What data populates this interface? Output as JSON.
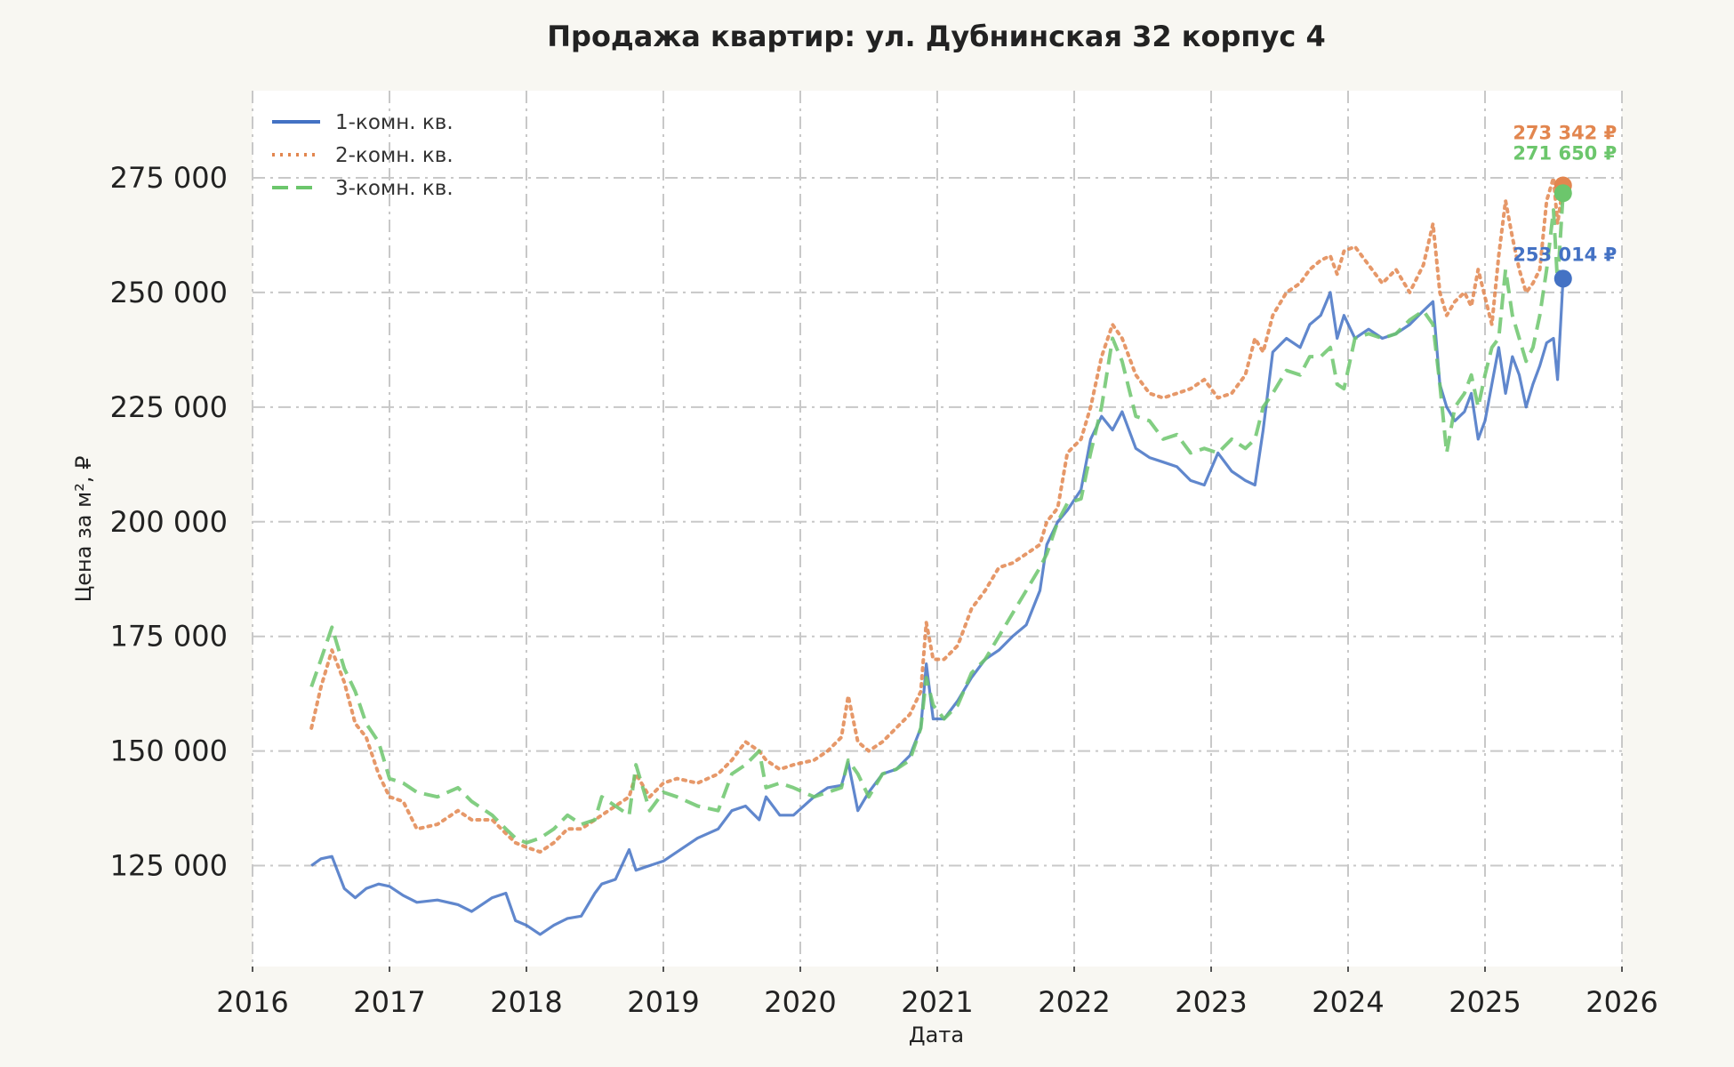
{
  "chart_data": {
    "type": "line",
    "title": "Продажа квартир: ул. Дубнинская 32 корпус 4",
    "xlabel": "Дата",
    "ylabel": "Цена за м², ₽",
    "xlim": [
      2016.0,
      2026.0
    ],
    "ylim": [
      103000,
      294000
    ],
    "x_ticks": [
      2016,
      2017,
      2018,
      2019,
      2020,
      2021,
      2022,
      2023,
      2024,
      2025,
      2026
    ],
    "x_tick_labels": [
      "2016",
      "2017",
      "2018",
      "2019",
      "2020",
      "2021",
      "2022",
      "2023",
      "2024",
      "2025",
      "2026"
    ],
    "y_ticks": [
      125000,
      150000,
      175000,
      200000,
      225000,
      250000,
      275000
    ],
    "y_tick_labels": [
      "125 000",
      "150 000",
      "175 000",
      "200 000",
      "225 000",
      "250 000",
      "275 000"
    ],
    "grid": true,
    "legend_position": "top-left",
    "series": [
      {
        "name": "1-комн. кв.",
        "color": "#4472c4",
        "style": "solid",
        "end_label": "253 014 ₽",
        "end_value": 253014,
        "x": [
          2016.43,
          2016.5,
          2016.58,
          2016.67,
          2016.75,
          2016.83,
          2016.92,
          2017.0,
          2017.1,
          2017.2,
          2017.35,
          2017.5,
          2017.6,
          2017.75,
          2017.85,
          2017.92,
          2018.0,
          2018.1,
          2018.2,
          2018.3,
          2018.4,
          2018.5,
          2018.55,
          2018.65,
          2018.75,
          2018.8,
          2018.9,
          2019.0,
          2019.1,
          2019.25,
          2019.4,
          2019.5,
          2019.6,
          2019.7,
          2019.75,
          2019.85,
          2019.95,
          2020.1,
          2020.2,
          2020.3,
          2020.35,
          2020.42,
          2020.5,
          2020.6,
          2020.7,
          2020.8,
          2020.88,
          2020.92,
          2020.97,
          2021.05,
          2021.15,
          2021.25,
          2021.35,
          2021.45,
          2021.55,
          2021.65,
          2021.75,
          2021.8,
          2021.88,
          2021.95,
          2022.05,
          2022.12,
          2022.2,
          2022.28,
          2022.35,
          2022.45,
          2022.55,
          2022.65,
          2022.75,
          2022.85,
          2022.95,
          2023.05,
          2023.15,
          2023.25,
          2023.32,
          2023.38,
          2023.45,
          2023.55,
          2023.65,
          2023.72,
          2023.8,
          2023.87,
          2023.92,
          2023.97,
          2024.05,
          2024.15,
          2024.25,
          2024.35,
          2024.45,
          2024.55,
          2024.62,
          2024.67,
          2024.72,
          2024.78,
          2024.85,
          2024.9,
          2024.95,
          2025.0,
          2025.05,
          2025.1,
          2025.15,
          2025.2,
          2025.25,
          2025.3,
          2025.35,
          2025.4,
          2025.45,
          2025.5,
          2025.53,
          2025.57
        ],
        "y": [
          125000,
          126500,
          127000,
          120000,
          118000,
          120000,
          121000,
          120500,
          118500,
          117000,
          117500,
          116500,
          115000,
          118000,
          119000,
          113000,
          112000,
          110000,
          112000,
          113500,
          114000,
          119000,
          121000,
          122000,
          128500,
          124000,
          125000,
          126000,
          128000,
          131000,
          133000,
          137000,
          138000,
          135000,
          140000,
          136000,
          136000,
          140000,
          142000,
          142500,
          147500,
          137000,
          141000,
          145000,
          146000,
          149000,
          155000,
          169000,
          157000,
          157000,
          161000,
          166000,
          170000,
          172000,
          175000,
          177500,
          185000,
          195000,
          200000,
          202500,
          207000,
          218000,
          223000,
          220000,
          224000,
          216000,
          214000,
          213000,
          212000,
          209000,
          208000,
          215000,
          211000,
          209000,
          208000,
          220000,
          237000,
          240000,
          238000,
          243000,
          245000,
          250000,
          240000,
          245000,
          240000,
          242000,
          240000,
          241000,
          243000,
          246000,
          248000,
          230000,
          225000,
          222000,
          224000,
          228000,
          218000,
          222000,
          230000,
          238000,
          228000,
          236000,
          232000,
          225000,
          230000,
          234000,
          239000,
          240000,
          231000,
          253014
        ]
      },
      {
        "name": "2-комн. кв.",
        "color": "#e2864f",
        "style": "dotted",
        "end_label": "273 342 ₽",
        "end_value": 273342,
        "x": [
          2016.43,
          2016.5,
          2016.58,
          2016.67,
          2016.75,
          2016.83,
          2016.92,
          2017.0,
          2017.1,
          2017.2,
          2017.35,
          2017.5,
          2017.6,
          2017.75,
          2017.85,
          2017.92,
          2018.0,
          2018.1,
          2018.2,
          2018.3,
          2018.4,
          2018.5,
          2018.55,
          2018.65,
          2018.75,
          2018.8,
          2018.9,
          2019.0,
          2019.1,
          2019.25,
          2019.4,
          2019.5,
          2019.6,
          2019.7,
          2019.75,
          2019.85,
          2019.95,
          2020.1,
          2020.2,
          2020.3,
          2020.35,
          2020.42,
          2020.5,
          2020.6,
          2020.7,
          2020.8,
          2020.88,
          2020.92,
          2020.97,
          2021.05,
          2021.15,
          2021.25,
          2021.35,
          2021.45,
          2021.55,
          2021.65,
          2021.75,
          2021.8,
          2021.88,
          2021.95,
          2022.05,
          2022.12,
          2022.2,
          2022.28,
          2022.35,
          2022.45,
          2022.55,
          2022.65,
          2022.75,
          2022.85,
          2022.95,
          2023.05,
          2023.15,
          2023.25,
          2023.32,
          2023.38,
          2023.45,
          2023.55,
          2023.65,
          2023.72,
          2023.8,
          2023.87,
          2023.92,
          2023.97,
          2024.05,
          2024.15,
          2024.25,
          2024.35,
          2024.45,
          2024.55,
          2024.62,
          2024.67,
          2024.72,
          2024.78,
          2024.85,
          2024.9,
          2024.95,
          2025.0,
          2025.05,
          2025.1,
          2025.15,
          2025.2,
          2025.25,
          2025.3,
          2025.35,
          2025.4,
          2025.45,
          2025.5,
          2025.53,
          2025.57
        ],
        "y": [
          155000,
          164000,
          172000,
          165000,
          156000,
          153000,
          145000,
          140000,
          139000,
          133000,
          134000,
          137000,
          135000,
          135000,
          132000,
          130000,
          129000,
          128000,
          130000,
          133000,
          133000,
          135000,
          136000,
          138000,
          140000,
          145000,
          140000,
          143000,
          144000,
          143000,
          145000,
          148000,
          152000,
          150000,
          148000,
          146000,
          147000,
          148000,
          150000,
          153000,
          162000,
          152000,
          150000,
          152000,
          155000,
          158000,
          163000,
          178000,
          170000,
          170000,
          173000,
          181000,
          185000,
          190000,
          191000,
          193000,
          195000,
          200000,
          203000,
          215000,
          218000,
          225000,
          236000,
          243000,
          240000,
          232000,
          228000,
          227000,
          228000,
          229000,
          231000,
          227000,
          228000,
          232000,
          240000,
          237000,
          245000,
          250000,
          252000,
          255000,
          257000,
          258000,
          254000,
          259000,
          260000,
          256000,
          252000,
          255000,
          250000,
          256000,
          265000,
          250000,
          245000,
          248000,
          250000,
          247000,
          255000,
          249000,
          243000,
          258000,
          270000,
          262000,
          255000,
          250000,
          252000,
          255000,
          270000,
          275000,
          265000,
          273342
        ]
      },
      {
        "name": "3-комн. кв.",
        "color": "#6cc66c",
        "style": "dashed",
        "end_label": "271 650 ₽",
        "end_value": 271650,
        "x": [
          2016.43,
          2016.5,
          2016.58,
          2016.67,
          2016.75,
          2016.83,
          2016.92,
          2017.0,
          2017.1,
          2017.2,
          2017.35,
          2017.5,
          2017.6,
          2017.75,
          2017.85,
          2017.92,
          2018.0,
          2018.1,
          2018.2,
          2018.3,
          2018.4,
          2018.5,
          2018.55,
          2018.65,
          2018.75,
          2018.8,
          2018.9,
          2019.0,
          2019.1,
          2019.25,
          2019.4,
          2019.5,
          2019.6,
          2019.7,
          2019.75,
          2019.85,
          2019.95,
          2020.1,
          2020.2,
          2020.3,
          2020.35,
          2020.42,
          2020.5,
          2020.6,
          2020.7,
          2020.8,
          2020.88,
          2020.92,
          2020.97,
          2021.05,
          2021.15,
          2021.25,
          2021.35,
          2021.45,
          2021.55,
          2021.65,
          2021.75,
          2021.8,
          2021.88,
          2021.95,
          2022.05,
          2022.12,
          2022.2,
          2022.28,
          2022.35,
          2022.45,
          2022.55,
          2022.65,
          2022.75,
          2022.85,
          2022.95,
          2023.05,
          2023.15,
          2023.25,
          2023.32,
          2023.38,
          2023.45,
          2023.55,
          2023.65,
          2023.72,
          2023.8,
          2023.87,
          2023.92,
          2023.97,
          2024.05,
          2024.15,
          2024.25,
          2024.35,
          2024.45,
          2024.55,
          2024.62,
          2024.67,
          2024.72,
          2024.78,
          2024.85,
          2024.9,
          2024.95,
          2025.0,
          2025.05,
          2025.1,
          2025.15,
          2025.2,
          2025.25,
          2025.3,
          2025.35,
          2025.4,
          2025.45,
          2025.5,
          2025.53,
          2025.57
        ],
        "y": [
          164000,
          170000,
          177000,
          168000,
          163000,
          156000,
          152000,
          144000,
          143000,
          141000,
          140000,
          142000,
          139000,
          136000,
          133000,
          131000,
          130000,
          131000,
          133000,
          136000,
          134000,
          135000,
          140000,
          138000,
          136000,
          147000,
          137000,
          141000,
          140000,
          138000,
          137000,
          145000,
          147000,
          150000,
          142000,
          143000,
          142000,
          140000,
          141000,
          142000,
          148000,
          145000,
          140000,
          145000,
          146000,
          148000,
          155000,
          166000,
          160000,
          157000,
          160000,
          167000,
          170000,
          175000,
          180000,
          185000,
          190000,
          193000,
          200000,
          204000,
          205000,
          215000,
          225000,
          240000,
          235000,
          223000,
          222000,
          218000,
          219000,
          215000,
          216000,
          215000,
          218000,
          216000,
          218000,
          225000,
          228000,
          233000,
          232000,
          236000,
          236000,
          238000,
          230000,
          229000,
          240000,
          241000,
          240000,
          241000,
          244000,
          246000,
          243000,
          230000,
          215000,
          225000,
          228000,
          232000,
          225000,
          232000,
          238000,
          240000,
          255000,
          245000,
          240000,
          235000,
          238000,
          245000,
          255000,
          268000,
          252000,
          271650
        ]
      }
    ]
  }
}
